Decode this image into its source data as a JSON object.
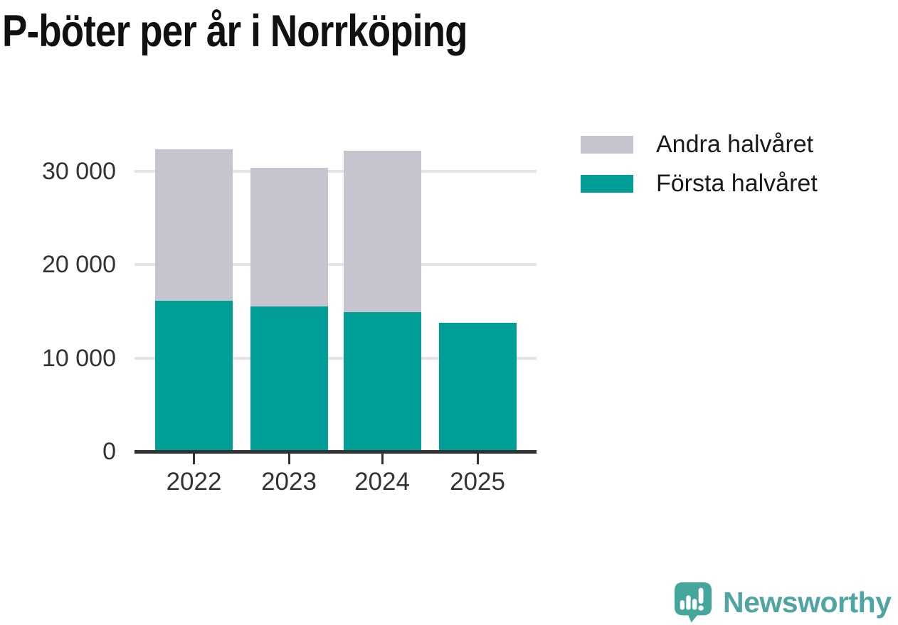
{
  "title": "P-böter per år i Norrköping",
  "legend": {
    "items": [
      {
        "label": "Andra halvåret",
        "color": "#c8c4cf"
      },
      {
        "label": "Första halvåret",
        "color": "#009e96"
      }
    ]
  },
  "chart_data": {
    "type": "bar",
    "stacked": true,
    "title": "P-böter per år i Norrköping",
    "categories": [
      "2022",
      "2023",
      "2024",
      "2025"
    ],
    "series": [
      {
        "name": "Första halvåret",
        "color": "#009e96",
        "values": [
          16100,
          15500,
          14900,
          13750
        ]
      },
      {
        "name": "Andra halvåret",
        "color": "#c8c4cf",
        "values": [
          16200,
          14850,
          17250,
          null
        ]
      }
    ],
    "totals": [
      32300,
      30350,
      32150,
      13750
    ],
    "xlabel": "",
    "ylabel": "",
    "ylim": [
      0,
      35000
    ],
    "yticks": [
      {
        "value": 0,
        "label": "0"
      },
      {
        "value": 10000,
        "label": "10 000"
      },
      {
        "value": 20000,
        "label": "20 000"
      },
      {
        "value": 30000,
        "label": "30 000"
      }
    ],
    "grid": "horizontal",
    "legend_position": "top-right"
  },
  "branding": {
    "logo_text": "Newsworthy",
    "logo_color": "#45a69b",
    "text_color": "#4ea5a1"
  }
}
